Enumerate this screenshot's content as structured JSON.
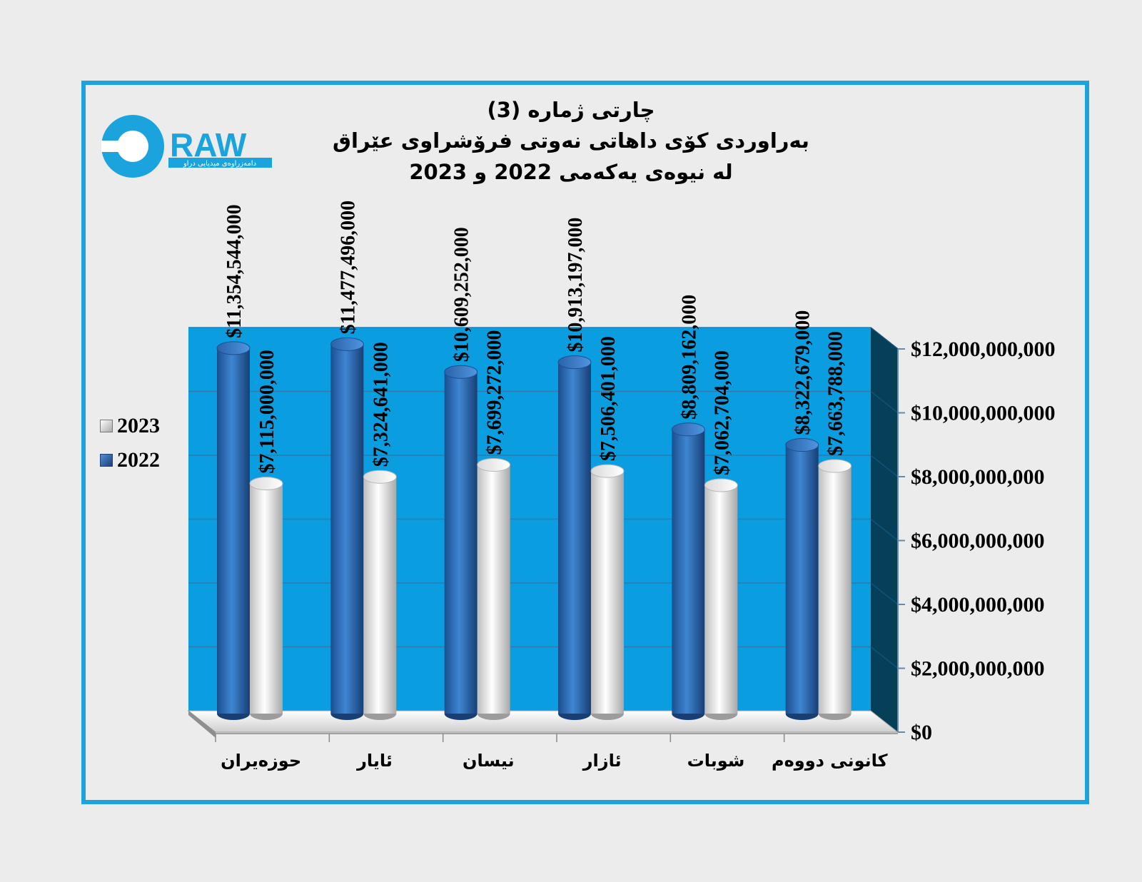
{
  "title": {
    "line1": "چارتی ژمارە (3)",
    "line2": "بەراوردی کۆی داهاتی  نەوتی فرۆشراوی عێراق",
    "line3": "لە نیوەی یەکەمی 2022 و 2023"
  },
  "logo": {
    "text": "RAW",
    "subtitle": "دامەزراوەی میدیایی دراو"
  },
  "colors": {
    "frame": "#1aa3dd",
    "plot_background": "#0a9ee0",
    "series_2022": "#2f6db8",
    "series_2023": "#e8e8e8",
    "side_wall": "#053f58"
  },
  "chart_data": {
    "type": "bar",
    "categories": [
      "حوزەیران",
      "ئایار",
      "نیسان",
      "ئازار",
      "شوبات",
      "کانونی دووەم"
    ],
    "series": [
      {
        "name": "2022",
        "values": [
          11354544000,
          11477496000,
          10609252000,
          10913197000,
          8809162000,
          8322679000
        ],
        "labels": [
          "$11,354,544,000",
          "$11,477,496,000",
          "$10,609,252,000",
          "$10,913,197,000",
          "$8,809,162,000",
          "$8,322,679,000"
        ]
      },
      {
        "name": "2023",
        "values": [
          7115000000,
          7324641000,
          7699272000,
          7506401000,
          7062704000,
          7663788000
        ],
        "labels": [
          "$7,115,000,000",
          "$7,324,641,000",
          "$7,699,272,000",
          "$7,506,401,000",
          "$7,062,704,000",
          "$7,663,788,000"
        ]
      }
    ],
    "ylim": [
      0,
      12000000000
    ],
    "yticks": [
      0,
      2000000000,
      4000000000,
      6000000000,
      8000000000,
      10000000000,
      12000000000
    ],
    "ytick_labels": [
      "$0",
      "$2,000,000,000",
      "$4,000,000,000",
      "$6,000,000,000",
      "$8,000,000,000",
      "$10,000,000,000",
      "$12,000,000,000"
    ],
    "y_axis_position": "right",
    "grid": true,
    "legend_position": "left",
    "style": "3d-cylinder"
  }
}
